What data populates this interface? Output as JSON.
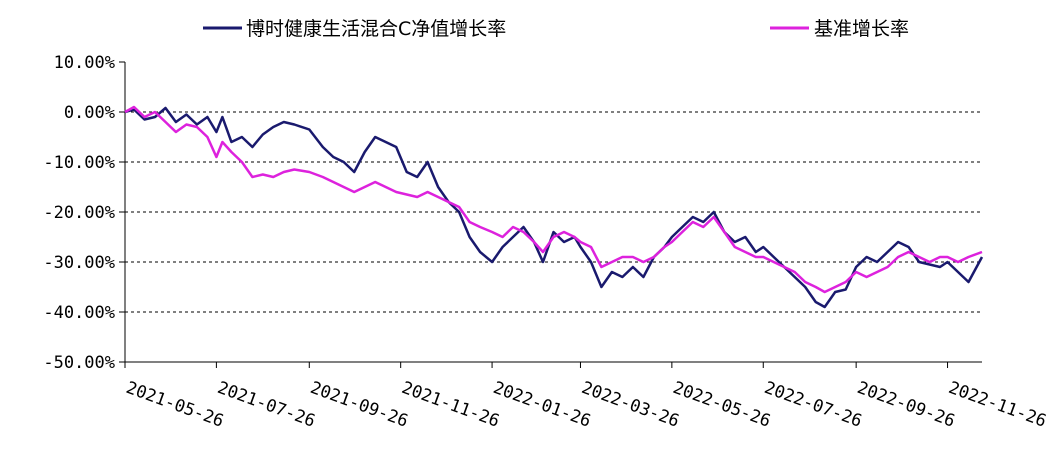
{
  "colors": {
    "fund": "#1a1a6e",
    "benchmark": "#dd22dd",
    "grid": "#000000",
    "axis": "#000000"
  },
  "legend": [
    {
      "label": "博时健康生活混合C净值增长率",
      "color": "#1a1a6e"
    },
    {
      "label": "基准增长率",
      "color": "#dd22dd"
    }
  ],
  "chart_data": {
    "type": "line",
    "title": "",
    "xlabel": "",
    "ylabel": "",
    "x_ticks": [
      "2021-05-26",
      "2021-07-26",
      "2021-09-26",
      "2021-11-26",
      "2022-01-26",
      "2022-03-26",
      "2022-05-26",
      "2022-07-26",
      "2022-09-26",
      "2022-11-26"
    ],
    "y_ticks": [
      "10.00%",
      "0.00%",
      "-10.00%",
      "-20.00%",
      "-30.00%",
      "-40.00%",
      "-50.00%"
    ],
    "ylim": [
      -50,
      10
    ],
    "y_unit": "%",
    "grid": "horizontal dashed",
    "legend_position": "top",
    "x_start": "2021-05-26",
    "x_end": "2022-12-19",
    "series": [
      {
        "name": "博时健康生活混合C净值增长率",
        "color": "#1a1a6e",
        "points": [
          [
            "2021-05-26",
            0
          ],
          [
            "2021-06-01",
            0.5
          ],
          [
            "2021-06-08",
            -1.5
          ],
          [
            "2021-06-15",
            -1
          ],
          [
            "2021-06-22",
            0.8
          ],
          [
            "2021-06-29",
            -2
          ],
          [
            "2021-07-06",
            -0.5
          ],
          [
            "2021-07-13",
            -2.5
          ],
          [
            "2021-07-20",
            -1
          ],
          [
            "2021-07-26",
            -4
          ],
          [
            "2021-07-30",
            -1
          ],
          [
            "2021-08-05",
            -6
          ],
          [
            "2021-08-12",
            -5
          ],
          [
            "2021-08-19",
            -7
          ],
          [
            "2021-08-26",
            -4.5
          ],
          [
            "2021-09-02",
            -3
          ],
          [
            "2021-09-09",
            -2
          ],
          [
            "2021-09-16",
            -2.5
          ],
          [
            "2021-09-26",
            -3.5
          ],
          [
            "2021-10-05",
            -7
          ],
          [
            "2021-10-12",
            -9
          ],
          [
            "2021-10-19",
            -10
          ],
          [
            "2021-10-26",
            -12
          ],
          [
            "2021-11-02",
            -8
          ],
          [
            "2021-11-09",
            -5
          ],
          [
            "2021-11-16",
            -6
          ],
          [
            "2021-11-23",
            -7
          ],
          [
            "2021-11-30",
            -12
          ],
          [
            "2021-12-07",
            -13
          ],
          [
            "2021-12-14",
            -10
          ],
          [
            "2021-12-21",
            -15
          ],
          [
            "2021-12-28",
            -18
          ],
          [
            "2022-01-04",
            -20
          ],
          [
            "2022-01-11",
            -25
          ],
          [
            "2022-01-18",
            -28
          ],
          [
            "2022-01-26",
            -30
          ],
          [
            "2022-02-02",
            -27
          ],
          [
            "2022-02-09",
            -25
          ],
          [
            "2022-02-16",
            -23
          ],
          [
            "2022-02-23",
            -26
          ],
          [
            "2022-03-01",
            -30
          ],
          [
            "2022-03-08",
            -24
          ],
          [
            "2022-03-15",
            -26
          ],
          [
            "2022-03-22",
            -25
          ],
          [
            "2022-03-26",
            -27
          ],
          [
            "2022-04-02",
            -30
          ],
          [
            "2022-04-09",
            -35
          ],
          [
            "2022-04-16",
            -32
          ],
          [
            "2022-04-23",
            -33
          ],
          [
            "2022-04-30",
            -31
          ],
          [
            "2022-05-07",
            -33
          ],
          [
            "2022-05-14",
            -29
          ],
          [
            "2022-05-21",
            -27
          ],
          [
            "2022-05-26",
            -25
          ],
          [
            "2022-06-02",
            -23
          ],
          [
            "2022-06-09",
            -21
          ],
          [
            "2022-06-16",
            -22
          ],
          [
            "2022-06-23",
            -20
          ],
          [
            "2022-06-30",
            -24
          ],
          [
            "2022-07-07",
            -26
          ],
          [
            "2022-07-14",
            -25
          ],
          [
            "2022-07-21",
            -28
          ],
          [
            "2022-07-26",
            -27
          ],
          [
            "2022-08-02",
            -29
          ],
          [
            "2022-08-09",
            -31
          ],
          [
            "2022-08-16",
            -33
          ],
          [
            "2022-08-23",
            -35
          ],
          [
            "2022-08-30",
            -38
          ],
          [
            "2022-09-05",
            -39
          ],
          [
            "2022-09-12",
            -36
          ],
          [
            "2022-09-19",
            -35.5
          ],
          [
            "2022-09-26",
            -31
          ],
          [
            "2022-10-03",
            -29
          ],
          [
            "2022-10-10",
            -30
          ],
          [
            "2022-10-17",
            -28
          ],
          [
            "2022-10-24",
            -26
          ],
          [
            "2022-10-31",
            -27
          ],
          [
            "2022-11-07",
            -30
          ],
          [
            "2022-11-14",
            -30.5
          ],
          [
            "2022-11-21",
            -31
          ],
          [
            "2022-11-26",
            -30
          ],
          [
            "2022-12-03",
            -32
          ],
          [
            "2022-12-10",
            -34
          ],
          [
            "2022-12-19",
            -29
          ]
        ]
      },
      {
        "name": "基准增长率",
        "color": "#dd22dd",
        "points": [
          [
            "2021-05-26",
            0
          ],
          [
            "2021-06-01",
            1
          ],
          [
            "2021-06-08",
            -1
          ],
          [
            "2021-06-15",
            0
          ],
          [
            "2021-06-22",
            -2
          ],
          [
            "2021-06-29",
            -4
          ],
          [
            "2021-07-06",
            -2.5
          ],
          [
            "2021-07-13",
            -3
          ],
          [
            "2021-07-20",
            -5
          ],
          [
            "2021-07-26",
            -9
          ],
          [
            "2021-07-30",
            -6
          ],
          [
            "2021-08-05",
            -8
          ],
          [
            "2021-08-12",
            -10
          ],
          [
            "2021-08-19",
            -13
          ],
          [
            "2021-08-26",
            -12.5
          ],
          [
            "2021-09-02",
            -13
          ],
          [
            "2021-09-09",
            -12
          ],
          [
            "2021-09-16",
            -11.5
          ],
          [
            "2021-09-26",
            -12
          ],
          [
            "2021-10-05",
            -13
          ],
          [
            "2021-10-12",
            -14
          ],
          [
            "2021-10-19",
            -15
          ],
          [
            "2021-10-26",
            -16
          ],
          [
            "2021-11-02",
            -15
          ],
          [
            "2021-11-09",
            -14
          ],
          [
            "2021-11-16",
            -15
          ],
          [
            "2021-11-23",
            -16
          ],
          [
            "2021-11-30",
            -16.5
          ],
          [
            "2021-12-07",
            -17
          ],
          [
            "2021-12-14",
            -16
          ],
          [
            "2021-12-21",
            -17
          ],
          [
            "2021-12-28",
            -18
          ],
          [
            "2022-01-04",
            -19
          ],
          [
            "2022-01-11",
            -22
          ],
          [
            "2022-01-18",
            -23
          ],
          [
            "2022-01-26",
            -24
          ],
          [
            "2022-02-02",
            -25
          ],
          [
            "2022-02-09",
            -23
          ],
          [
            "2022-02-16",
            -24
          ],
          [
            "2022-02-23",
            -26
          ],
          [
            "2022-03-01",
            -28
          ],
          [
            "2022-03-08",
            -25
          ],
          [
            "2022-03-15",
            -24
          ],
          [
            "2022-03-22",
            -25
          ],
          [
            "2022-03-26",
            -26
          ],
          [
            "2022-04-02",
            -27
          ],
          [
            "2022-04-09",
            -31
          ],
          [
            "2022-04-16",
            -30
          ],
          [
            "2022-04-23",
            -29
          ],
          [
            "2022-04-30",
            -29
          ],
          [
            "2022-05-07",
            -30
          ],
          [
            "2022-05-14",
            -29
          ],
          [
            "2022-05-21",
            -27
          ],
          [
            "2022-05-26",
            -26
          ],
          [
            "2022-06-02",
            -24
          ],
          [
            "2022-06-09",
            -22
          ],
          [
            "2022-06-16",
            -23
          ],
          [
            "2022-06-23",
            -21
          ],
          [
            "2022-06-30",
            -24
          ],
          [
            "2022-07-07",
            -27
          ],
          [
            "2022-07-14",
            -28
          ],
          [
            "2022-07-21",
            -29
          ],
          [
            "2022-07-26",
            -29
          ],
          [
            "2022-08-02",
            -30
          ],
          [
            "2022-08-09",
            -31
          ],
          [
            "2022-08-16",
            -32
          ],
          [
            "2022-08-23",
            -34
          ],
          [
            "2022-08-30",
            -35
          ],
          [
            "2022-09-05",
            -36
          ],
          [
            "2022-09-12",
            -35
          ],
          [
            "2022-09-19",
            -34
          ],
          [
            "2022-09-26",
            -32
          ],
          [
            "2022-10-03",
            -33
          ],
          [
            "2022-10-10",
            -32
          ],
          [
            "2022-10-17",
            -31
          ],
          [
            "2022-10-24",
            -29
          ],
          [
            "2022-10-31",
            -28
          ],
          [
            "2022-11-07",
            -29
          ],
          [
            "2022-11-14",
            -30
          ],
          [
            "2022-11-21",
            -29
          ],
          [
            "2022-11-26",
            -29
          ],
          [
            "2022-12-03",
            -30
          ],
          [
            "2022-12-10",
            -29
          ],
          [
            "2022-12-19",
            -28
          ]
        ]
      }
    ]
  }
}
